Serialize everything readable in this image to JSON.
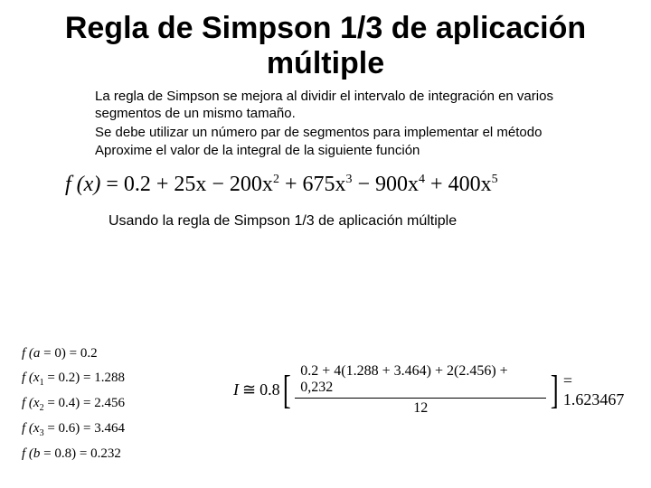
{
  "title": "Regla de Simpson 1/3 de aplicación múltiple",
  "body": {
    "p1": "La regla de Simpson se mejora al dividir el intervalo de integración en varios segmentos de un mismo tamaño.",
    "p2": "Se debe utilizar un número par de segmentos para implementar el método",
    "p3": "Aproxime el valor de la integral de la siguiente función"
  },
  "formula": {
    "lhs": "f (x)",
    "eq": "=",
    "rhs_terms": "0.2 + 25x − 200x",
    "e2": "2",
    "t3": "+ 675x",
    "e3": "3",
    "t4": "− 900x",
    "e4": "4",
    "t5": "+ 400x",
    "e5": "5"
  },
  "caption": "Usando la regla de Simpson 1/3 de aplicación múltiple",
  "fa": {
    "r1a": "f (a",
    "r1b": "= 0)",
    "r1v": "= 0.2",
    "r2a": "f (x",
    "r2s": "1",
    "r2b": "= 0.2)",
    "r2v": "= 1.288",
    "r3a": "f (x",
    "r3s": "2",
    "r3b": "= 0.4)",
    "r3v": "= 2.456",
    "r4a": "f (x",
    "r4s": "3",
    "r4b": "= 0.6)",
    "r4v": "= 3.464",
    "r5a": "f (b",
    "r5b": "= 0.8)",
    "r5v": "= 0.232"
  },
  "integral": {
    "I": "I",
    "coef": "0.8",
    "num": "0.2 + 4(1.288 + 3.464) + 2(2.456) + 0,232",
    "den": "12",
    "result": "= 1.623467"
  }
}
